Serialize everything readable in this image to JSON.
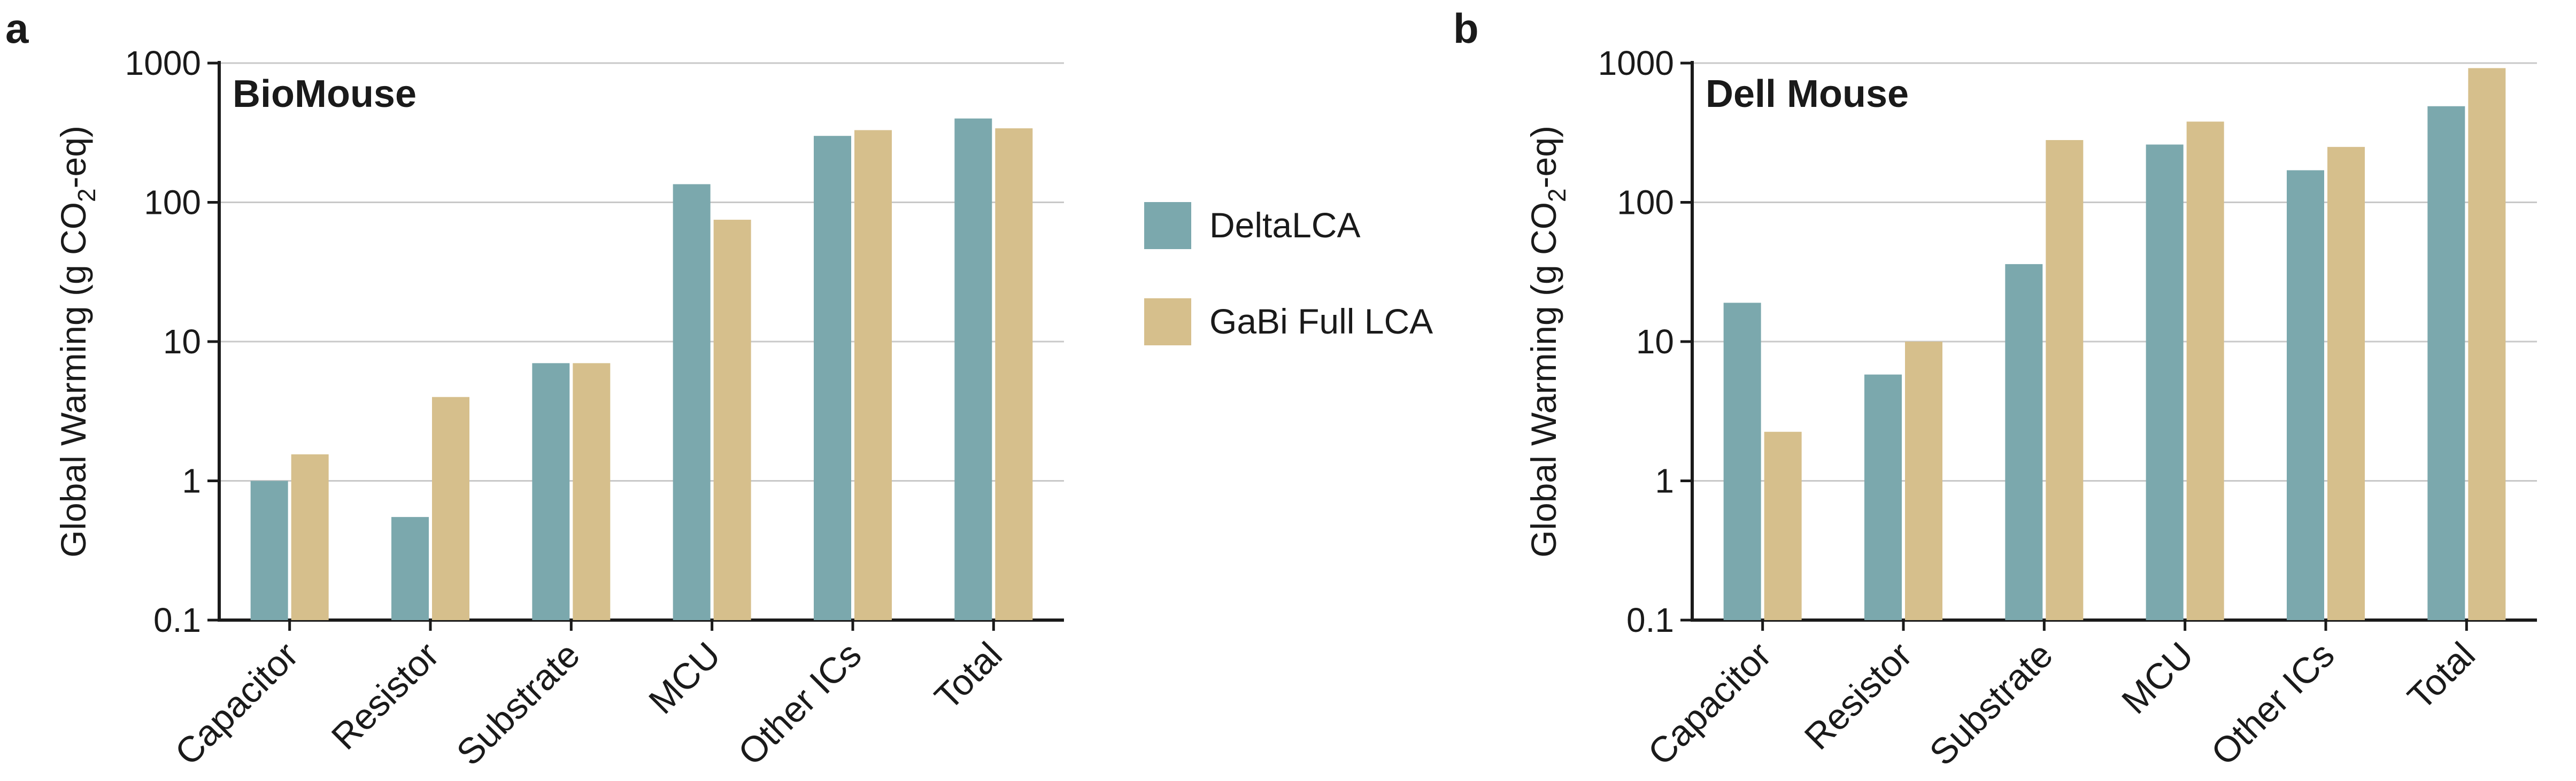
{
  "legend": {
    "entries": [
      {
        "label": "DeltaLCA",
        "color": "#7ba8ad"
      },
      {
        "label": "GaBi Full LCA",
        "color": "#d6bf8c"
      }
    ]
  },
  "y_axis_title": {
    "prefix": "Global Warming (g CO",
    "subscript": "2",
    "suffix": "-eq)"
  },
  "chart_data": [
    {
      "type": "bar",
      "panel": "a",
      "title": "BioMouse",
      "yscale": "log",
      "ylim": [
        0.1,
        1000
      ],
      "yticks": [
        "0.1",
        "1",
        "10",
        "100",
        "1000"
      ],
      "categories": [
        "Capacitor",
        "Resistor",
        "Substrate",
        "MCU",
        "Other ICs",
        "Total"
      ],
      "series": [
        {
          "name": "DeltaLCA",
          "values": [
            1.0,
            0.55,
            7.0,
            135,
            300,
            400
          ]
        },
        {
          "name": "GaBi Full LCA",
          "values": [
            1.55,
            4.0,
            7.0,
            75,
            330,
            340
          ]
        }
      ]
    },
    {
      "type": "bar",
      "panel": "b",
      "title": "Dell Mouse",
      "yscale": "log",
      "ylim": [
        0.1,
        1000
      ],
      "yticks": [
        "0.1",
        "1",
        "10",
        "100",
        "1000"
      ],
      "categories": [
        "Capacitor",
        "Resistor",
        "Substrate",
        "MCU",
        "Other ICs",
        "Total"
      ],
      "series": [
        {
          "name": "DeltaLCA",
          "values": [
            19,
            5.8,
            36,
            260,
            170,
            490
          ]
        },
        {
          "name": "GaBi Full LCA",
          "values": [
            2.25,
            10,
            280,
            380,
            250,
            920
          ]
        }
      ]
    }
  ]
}
